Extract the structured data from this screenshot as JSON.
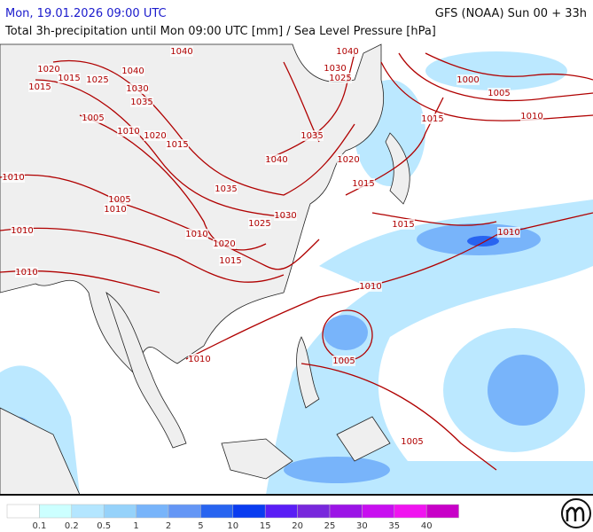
{
  "header": {
    "date": "Mon, 19.01.2026 09:00 UTC",
    "model": "GFS (NOAA) Sun 00 + 33h",
    "subtitle": "Total 3h-precipitation until Mon 09:00 UTC [mm] / Sea Level Pressure [hPa]"
  },
  "isobar_labels": [
    "1040",
    "1020",
    "1015",
    "1015",
    "1025",
    "1040",
    "1030",
    "1035",
    "1005",
    "1010",
    "1020",
    "1015",
    "1010",
    "1005",
    "1010",
    "1035",
    "1030",
    "1025",
    "1010",
    "1020",
    "1015",
    "1010",
    "1010",
    "1040",
    "1030",
    "1025",
    "1035",
    "1040",
    "1020",
    "1015",
    "1015",
    "1000",
    "1005",
    "1010",
    "1015",
    "1010",
    "1010",
    "1010",
    "1005",
    "1005"
  ],
  "legend": {
    "colors": [
      "#ffffff",
      "#ccffff",
      "#b4e6ff",
      "#96d2fa",
      "#78b4fa",
      "#6496f5",
      "#2864f0",
      "#0a3cf0",
      "#5a1ef5",
      "#7828dc",
      "#9b14e6",
      "#c80ff0",
      "#f014f0",
      "#c800c8"
    ],
    "labels": [
      "0.1",
      "0.2",
      "0.5",
      "1",
      "2",
      "5",
      "10",
      "15",
      "20",
      "25",
      "30",
      "35",
      "40"
    ]
  }
}
